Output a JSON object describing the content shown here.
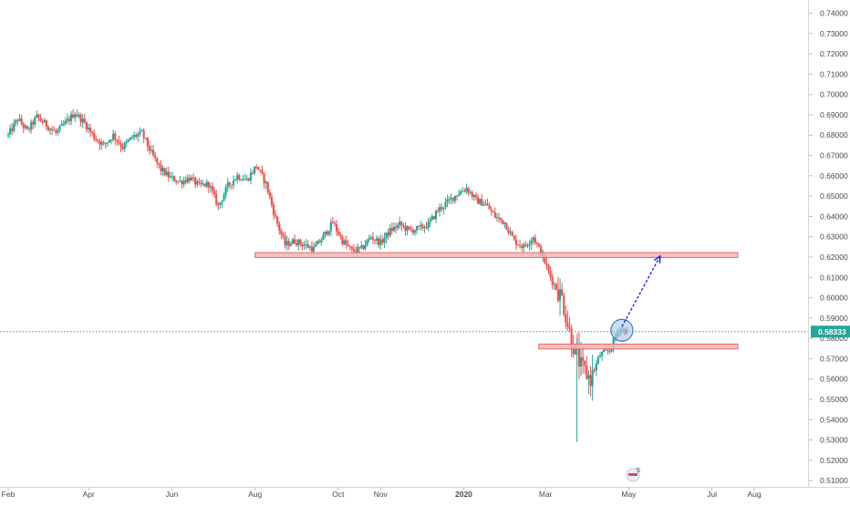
{
  "chart_data": {
    "type": "candlestick",
    "title": "",
    "xlabel": "",
    "ylabel": "",
    "ylim": [
      0.505,
      0.745
    ],
    "grid": false,
    "legend": "none",
    "y_ticks": [
      "0.74000",
      "0.73000",
      "0.72000",
      "0.71000",
      "0.70000",
      "0.69000",
      "0.68000",
      "0.67000",
      "0.66000",
      "0.65000",
      "0.64000",
      "0.63000",
      "0.62000",
      "0.61000",
      "0.60000",
      "0.59000",
      "0.58000",
      "0.57000",
      "0.56000",
      "0.55000",
      "0.54000",
      "0.53000",
      "0.52000",
      "0.51000"
    ],
    "x_ticks": [
      {
        "label": "Feb",
        "date": "2019-02-01"
      },
      {
        "label": "Apr",
        "date": "2019-04-01"
      },
      {
        "label": "Jun",
        "date": "2019-06-01"
      },
      {
        "label": "Aug",
        "date": "2019-08-01"
      },
      {
        "label": "Oct",
        "date": "2019-10-01"
      },
      {
        "label": "Nov",
        "date": "2019-11-01"
      },
      {
        "label": "2020",
        "date": "2020-01-01"
      },
      {
        "label": "Mar",
        "date": "2020-03-01"
      },
      {
        "label": "May",
        "date": "2020-05-01"
      },
      {
        "label": "Jul",
        "date": "2020-07-01"
      },
      {
        "label": "Aug",
        "date": "2020-08-01"
      }
    ],
    "last_price": 0.58333,
    "last_price_label": "0.58333",
    "series": [
      {
        "points": [
          {
            "date": "2019-02-01",
            "close": 0.68
          },
          {
            "date": "2019-02-08",
            "close": 0.688
          },
          {
            "date": "2019-02-15",
            "close": 0.682
          },
          {
            "date": "2019-02-22",
            "close": 0.689
          },
          {
            "date": "2019-03-01",
            "close": 0.685
          },
          {
            "date": "2019-03-08",
            "close": 0.681
          },
          {
            "date": "2019-03-15",
            "close": 0.686
          },
          {
            "date": "2019-03-22",
            "close": 0.691
          },
          {
            "date": "2019-03-29",
            "close": 0.686
          },
          {
            "date": "2019-04-05",
            "close": 0.679
          },
          {
            "date": "2019-04-12",
            "close": 0.675
          },
          {
            "date": "2019-04-19",
            "close": 0.68
          },
          {
            "date": "2019-04-26",
            "close": 0.674
          },
          {
            "date": "2019-05-03",
            "close": 0.679
          },
          {
            "date": "2019-05-10",
            "close": 0.681
          },
          {
            "date": "2019-05-17",
            "close": 0.671
          },
          {
            "date": "2019-05-24",
            "close": 0.663
          },
          {
            "date": "2019-05-31",
            "close": 0.659
          },
          {
            "date": "2019-06-07",
            "close": 0.657
          },
          {
            "date": "2019-06-14",
            "close": 0.659
          },
          {
            "date": "2019-06-21",
            "close": 0.655
          },
          {
            "date": "2019-06-28",
            "close": 0.656
          },
          {
            "date": "2019-07-05",
            "close": 0.645
          },
          {
            "date": "2019-07-12",
            "close": 0.655
          },
          {
            "date": "2019-07-19",
            "close": 0.66
          },
          {
            "date": "2019-07-26",
            "close": 0.658
          },
          {
            "date": "2019-08-02",
            "close": 0.665
          },
          {
            "date": "2019-08-09",
            "close": 0.656
          },
          {
            "date": "2019-08-16",
            "close": 0.639
          },
          {
            "date": "2019-08-23",
            "close": 0.626
          },
          {
            "date": "2019-08-30",
            "close": 0.628
          },
          {
            "date": "2019-09-06",
            "close": 0.626
          },
          {
            "date": "2019-09-13",
            "close": 0.624
          },
          {
            "date": "2019-09-20",
            "close": 0.63
          },
          {
            "date": "2019-09-27",
            "close": 0.637
          },
          {
            "date": "2019-10-04",
            "close": 0.628
          },
          {
            "date": "2019-10-11",
            "close": 0.623
          },
          {
            "date": "2019-10-18",
            "close": 0.624
          },
          {
            "date": "2019-10-25",
            "close": 0.63
          },
          {
            "date": "2019-11-01",
            "close": 0.627
          },
          {
            "date": "2019-11-08",
            "close": 0.633
          },
          {
            "date": "2019-11-15",
            "close": 0.636
          },
          {
            "date": "2019-11-22",
            "close": 0.633
          },
          {
            "date": "2019-11-29",
            "close": 0.634
          },
          {
            "date": "2019-12-06",
            "close": 0.636
          },
          {
            "date": "2019-12-13",
            "close": 0.643
          },
          {
            "date": "2019-12-20",
            "close": 0.647
          },
          {
            "date": "2019-12-27",
            "close": 0.651
          },
          {
            "date": "2020-01-03",
            "close": 0.654
          },
          {
            "date": "2020-01-10",
            "close": 0.648
          },
          {
            "date": "2020-01-17",
            "close": 0.646
          },
          {
            "date": "2020-01-24",
            "close": 0.64
          },
          {
            "date": "2020-01-31",
            "close": 0.637
          },
          {
            "date": "2020-02-07",
            "close": 0.628
          },
          {
            "date": "2020-02-14",
            "close": 0.625
          },
          {
            "date": "2020-02-21",
            "close": 0.63
          },
          {
            "date": "2020-02-28",
            "close": 0.62
          },
          {
            "date": "2020-03-06",
            "close": 0.608
          },
          {
            "date": "2020-03-13",
            "close": 0.6
          },
          {
            "date": "2020-03-20",
            "close": 0.579
          },
          {
            "date": "2020-03-27",
            "close": 0.566
          },
          {
            "date": "2020-04-03",
            "close": 0.56
          },
          {
            "date": "2020-04-10",
            "close": 0.572
          },
          {
            "date": "2020-04-17",
            "close": 0.574
          },
          {
            "date": "2020-04-24",
            "close": 0.585
          },
          {
            "date": "2020-05-01",
            "close": 0.583
          }
        ],
        "key_candles": [
          {
            "date": "2020-03-24",
            "high": 0.58,
            "low": 0.529
          }
        ]
      }
    ],
    "annotations": {
      "resistance_zone": {
        "from_date": "2019-08-01",
        "to_date": "2020-07-20",
        "top": 0.6222,
        "bottom": 0.6198
      },
      "support_zone": {
        "from_date": "2020-02-25",
        "to_date": "2020-07-20",
        "top": 0.5772,
        "bottom": 0.5748
      },
      "marker_circle": {
        "date": "2020-04-26",
        "price": 0.584
      },
      "arrow": {
        "from_date": "2020-04-26",
        "from_price": 0.5858,
        "to_date": "2020-05-24",
        "to_price": 0.6205
      }
    },
    "event_badge": "5"
  },
  "colors": {
    "up": "#26a69a",
    "down": "#ef5350",
    "zone_fill": "#f4b6b6",
    "zone_stroke": "#e06c6c",
    "arrow": "#1a1aeb",
    "price_line": "#26a69a",
    "axis_text": "#4a4a4a",
    "circle_fill": "#a9c8e8",
    "circle_stroke": "#3f7ac0"
  }
}
